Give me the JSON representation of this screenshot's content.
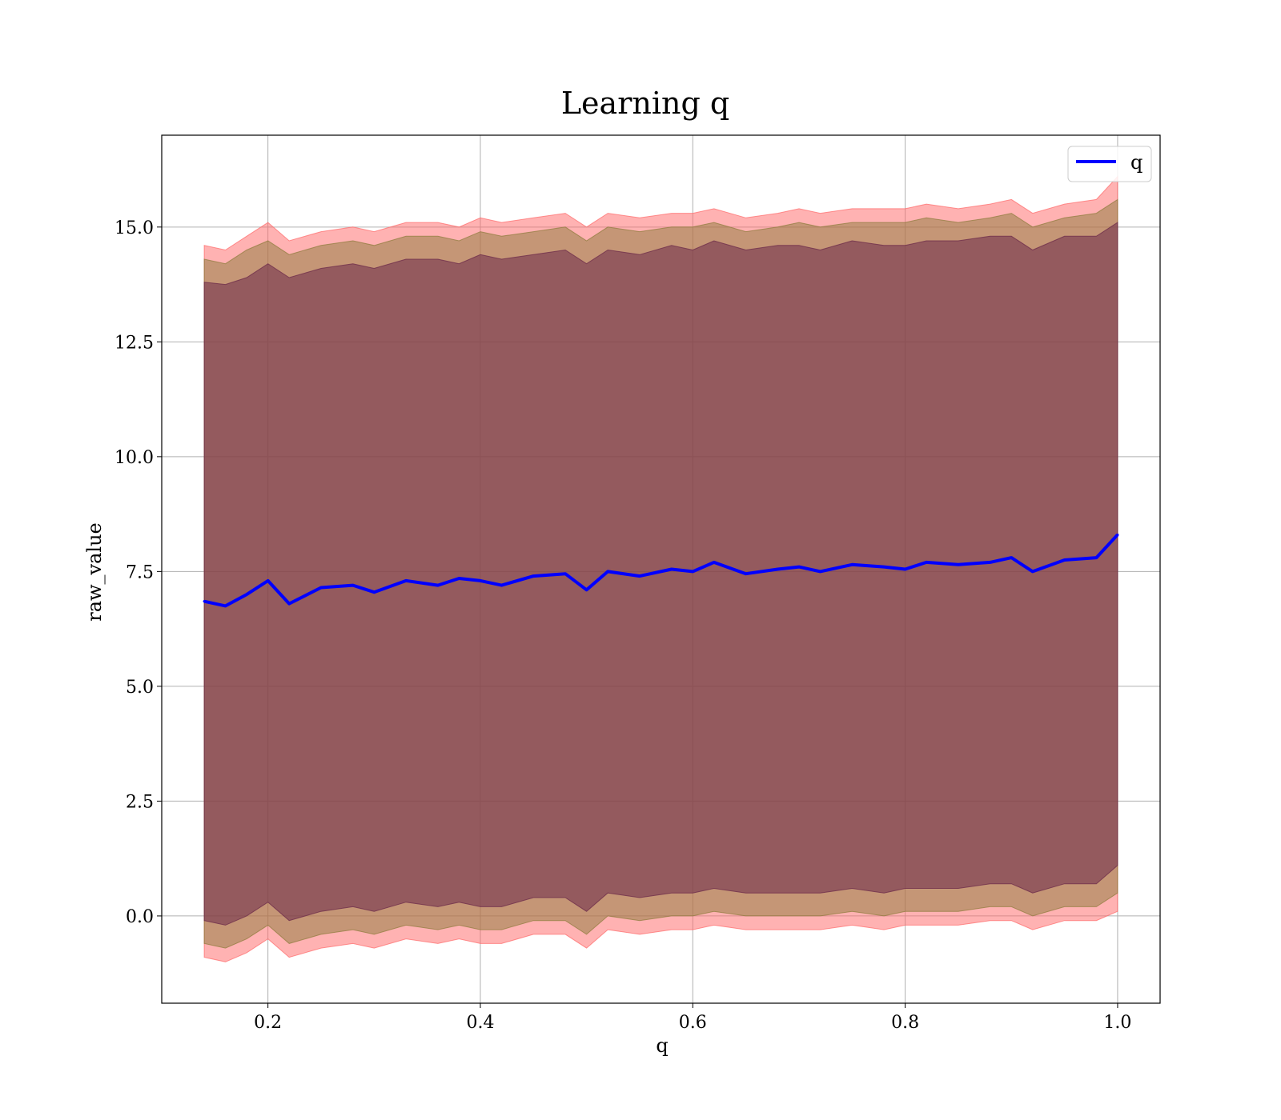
{
  "chart_data": {
    "type": "line",
    "title": "Learning q",
    "xlabel": "q",
    "ylabel": "raw_value",
    "xlim": [
      0.1,
      1.04
    ],
    "ylim": [
      -1.9,
      17.0
    ],
    "grid": true,
    "legend_placement": "top-right",
    "x_ticks": [
      "0.2",
      "0.4",
      "0.6",
      "0.8",
      "1.0"
    ],
    "y_ticks": [
      "0.0",
      "2.5",
      "5.0",
      "7.5",
      "10.0",
      "12.5",
      "15.0"
    ],
    "x_tick_values": [
      0.2,
      0.4,
      0.6,
      0.8,
      1.0
    ],
    "y_tick_values": [
      0.0,
      2.5,
      5.0,
      7.5,
      10.0,
      12.5,
      15.0
    ],
    "series": [
      {
        "name": "q",
        "color": "#0000ff",
        "x": [
          0.14,
          0.16,
          0.18,
          0.2,
          0.22,
          0.25,
          0.28,
          0.3,
          0.33,
          0.36,
          0.38,
          0.4,
          0.42,
          0.45,
          0.48,
          0.5,
          0.52,
          0.55,
          0.58,
          0.6,
          0.62,
          0.65,
          0.68,
          0.7,
          0.72,
          0.75,
          0.78,
          0.8,
          0.82,
          0.85,
          0.88,
          0.9,
          0.92,
          0.95,
          0.98,
          1.0
        ],
        "y": [
          6.85,
          6.75,
          7.0,
          7.3,
          6.8,
          7.15,
          7.2,
          7.05,
          7.3,
          7.2,
          7.35,
          7.3,
          7.2,
          7.4,
          7.45,
          7.1,
          7.5,
          7.4,
          7.55,
          7.5,
          7.7,
          7.45,
          7.55,
          7.6,
          7.5,
          7.65,
          7.6,
          7.55,
          7.7,
          7.65,
          7.7,
          7.8,
          7.5,
          7.75,
          7.8,
          8.3
        ]
      }
    ],
    "bands": [
      {
        "color": "#ff6666",
        "opacity": 0.5,
        "x": [
          0.14,
          0.16,
          0.18,
          0.2,
          0.22,
          0.25,
          0.28,
          0.3,
          0.33,
          0.36,
          0.38,
          0.4,
          0.42,
          0.45,
          0.48,
          0.5,
          0.52,
          0.55,
          0.58,
          0.6,
          0.62,
          0.65,
          0.68,
          0.7,
          0.72,
          0.75,
          0.78,
          0.8,
          0.82,
          0.85,
          0.88,
          0.9,
          0.92,
          0.95,
          0.98,
          1.0
        ],
        "upper": [
          14.6,
          14.5,
          14.8,
          15.1,
          14.7,
          14.9,
          15.0,
          14.9,
          15.1,
          15.1,
          15.0,
          15.2,
          15.1,
          15.2,
          15.3,
          15.0,
          15.3,
          15.2,
          15.3,
          15.3,
          15.4,
          15.2,
          15.3,
          15.4,
          15.3,
          15.4,
          15.4,
          15.4,
          15.5,
          15.4,
          15.5,
          15.6,
          15.3,
          15.5,
          15.6,
          16.1
        ],
        "lower": [
          -0.9,
          -1.0,
          -0.8,
          -0.5,
          -0.9,
          -0.7,
          -0.6,
          -0.7,
          -0.5,
          -0.6,
          -0.5,
          -0.6,
          -0.6,
          -0.4,
          -0.4,
          -0.7,
          -0.3,
          -0.4,
          -0.3,
          -0.3,
          -0.2,
          -0.3,
          -0.3,
          -0.3,
          -0.3,
          -0.2,
          -0.3,
          -0.2,
          -0.2,
          -0.2,
          -0.1,
          -0.1,
          -0.3,
          -0.1,
          -0.1,
          0.1
        ]
      },
      {
        "color": "#8b7a3a",
        "opacity": 0.5,
        "x": [
          0.14,
          0.16,
          0.18,
          0.2,
          0.22,
          0.25,
          0.28,
          0.3,
          0.33,
          0.36,
          0.38,
          0.4,
          0.42,
          0.45,
          0.48,
          0.5,
          0.52,
          0.55,
          0.58,
          0.6,
          0.62,
          0.65,
          0.68,
          0.7,
          0.72,
          0.75,
          0.78,
          0.8,
          0.82,
          0.85,
          0.88,
          0.9,
          0.92,
          0.95,
          0.98,
          1.0
        ],
        "upper": [
          14.3,
          14.2,
          14.5,
          14.7,
          14.4,
          14.6,
          14.7,
          14.6,
          14.8,
          14.8,
          14.7,
          14.9,
          14.8,
          14.9,
          15.0,
          14.7,
          15.0,
          14.9,
          15.0,
          15.0,
          15.1,
          14.9,
          15.0,
          15.1,
          15.0,
          15.1,
          15.1,
          15.1,
          15.2,
          15.1,
          15.2,
          15.3,
          15.0,
          15.2,
          15.3,
          15.6
        ],
        "lower": [
          -0.6,
          -0.7,
          -0.5,
          -0.2,
          -0.6,
          -0.4,
          -0.3,
          -0.4,
          -0.2,
          -0.3,
          -0.2,
          -0.3,
          -0.3,
          -0.1,
          -0.1,
          -0.4,
          0.0,
          -0.1,
          0.0,
          0.0,
          0.1,
          0.0,
          0.0,
          0.0,
          0.0,
          0.1,
          0.0,
          0.1,
          0.1,
          0.1,
          0.2,
          0.2,
          0.0,
          0.2,
          0.2,
          0.5
        ]
      },
      {
        "color": "#6b2a4a",
        "opacity": 0.55,
        "x": [
          0.14,
          0.16,
          0.18,
          0.2,
          0.22,
          0.25,
          0.28,
          0.3,
          0.33,
          0.36,
          0.38,
          0.4,
          0.42,
          0.45,
          0.48,
          0.5,
          0.52,
          0.55,
          0.58,
          0.6,
          0.62,
          0.65,
          0.68,
          0.7,
          0.72,
          0.75,
          0.78,
          0.8,
          0.82,
          0.85,
          0.88,
          0.9,
          0.92,
          0.95,
          0.98,
          1.0
        ],
        "upper": [
          13.8,
          13.75,
          13.9,
          14.2,
          13.9,
          14.1,
          14.2,
          14.1,
          14.3,
          14.3,
          14.2,
          14.4,
          14.3,
          14.4,
          14.5,
          14.2,
          14.5,
          14.4,
          14.6,
          14.5,
          14.7,
          14.5,
          14.6,
          14.6,
          14.5,
          14.7,
          14.6,
          14.6,
          14.7,
          14.7,
          14.8,
          14.8,
          14.5,
          14.8,
          14.8,
          15.1
        ],
        "lower": [
          -0.1,
          -0.2,
          0.0,
          0.3,
          -0.1,
          0.1,
          0.2,
          0.1,
          0.3,
          0.2,
          0.3,
          0.2,
          0.2,
          0.4,
          0.4,
          0.1,
          0.5,
          0.4,
          0.5,
          0.5,
          0.6,
          0.5,
          0.5,
          0.5,
          0.5,
          0.6,
          0.5,
          0.6,
          0.6,
          0.6,
          0.7,
          0.7,
          0.5,
          0.7,
          0.7,
          1.1
        ]
      }
    ]
  }
}
